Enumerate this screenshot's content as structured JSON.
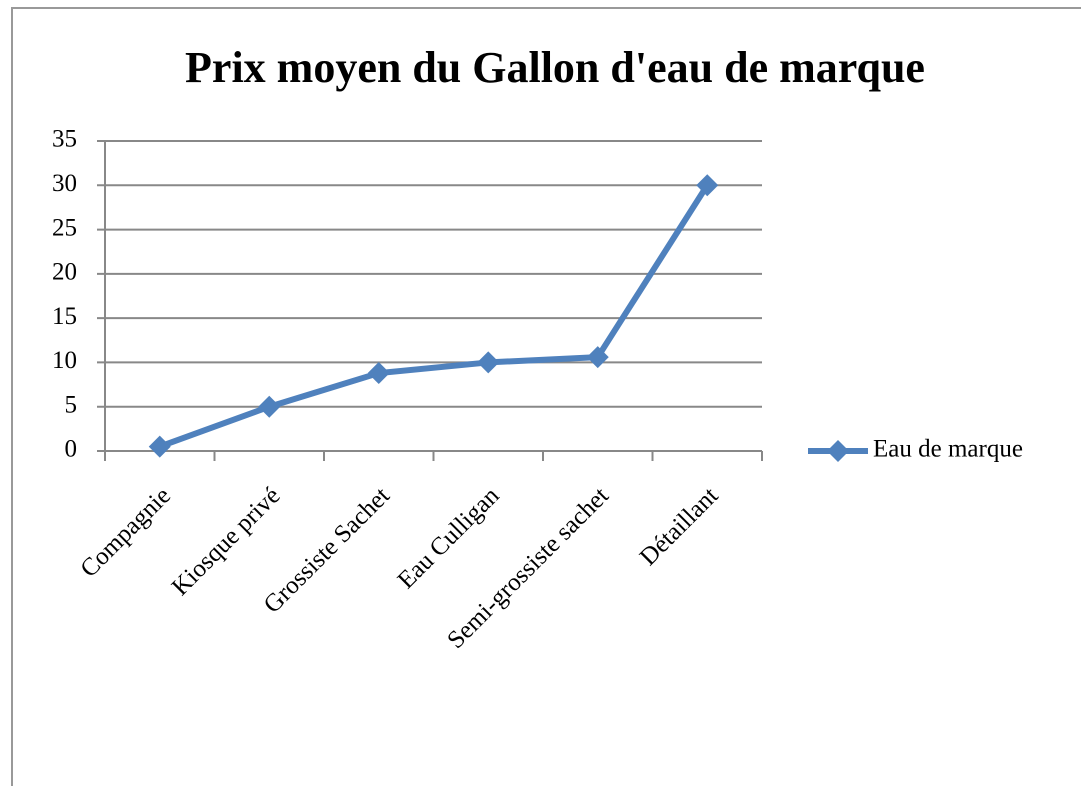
{
  "chart_data": {
    "type": "line",
    "title": "Prix moyen du Gallon d'eau de marque",
    "categories": [
      "Compagnie",
      "Kiosque privé",
      "Grossiste Sachet",
      "Eau Culligan",
      "Semi-grossiste sachet",
      "Détaillant"
    ],
    "series": [
      {
        "name": "Eau de marque",
        "color": "#4f81bd",
        "values": [
          0.5,
          5,
          8.8,
          10,
          10.6,
          30
        ]
      }
    ],
    "ylim": [
      0,
      35
    ],
    "yticks": [
      0,
      5,
      10,
      15,
      20,
      25,
      30,
      35
    ],
    "grid": true,
    "legend": "right"
  }
}
